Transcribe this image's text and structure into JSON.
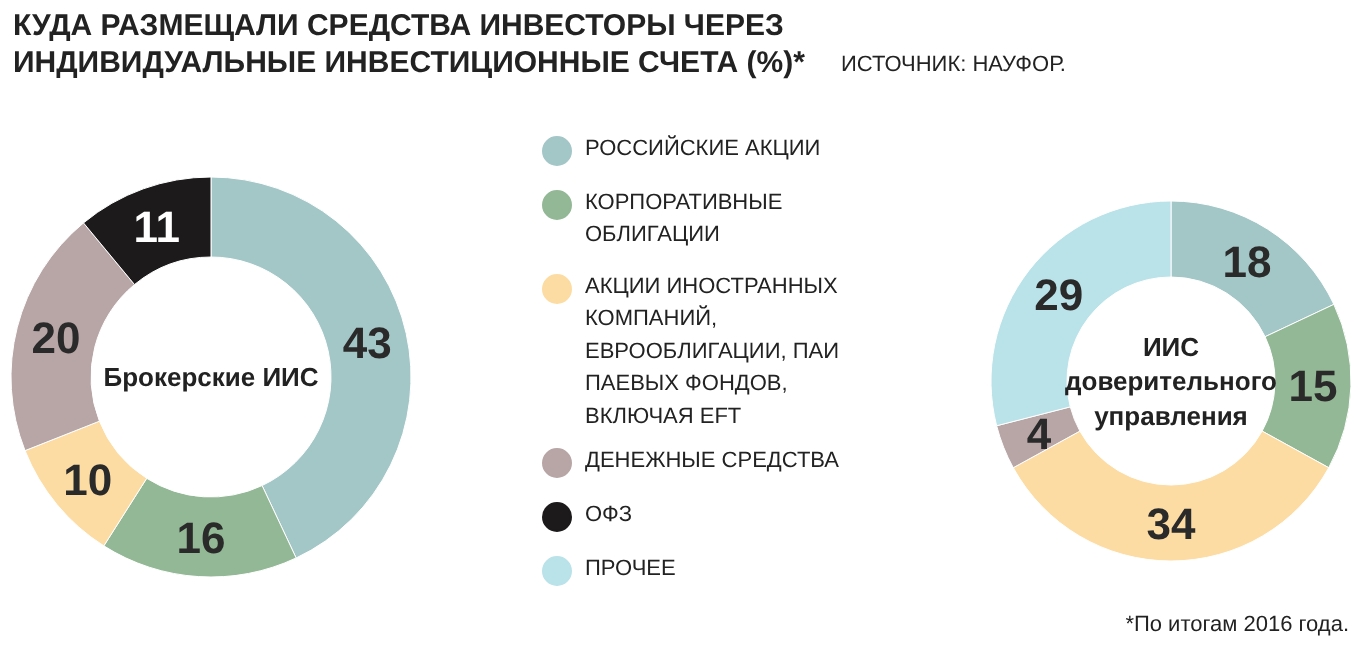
{
  "chart_data": [
    {
      "type": "donut",
      "title": "КУДА РАЗМЕЩАЛИ СРЕДСТВА ИНВЕСТОРЫ ЧЕРЕЗ ИНДИВИДУАЛЬНЫЕ ИНВЕСТИЦИОННЫЕ СЧЕТА (%)*",
      "subtitle": "Брокерские ИИС",
      "categories": [
        "РОССИЙСКИЕ АКЦИИ",
        "КОРПОРАТИВНЫЕ ОБЛИГАЦИИ",
        "АКЦИИ ИНОСТРАННЫХ КОМПАНИЙ, ЕВРООБЛИГАЦИИ, ПАИ ПАЕВЫХ ФОНДОВ, ВКЛЮЧАЯ EFT",
        "ДЕНЕЖНЫЕ СРЕДСТВА",
        "ОФЗ"
      ],
      "values": [
        43,
        16,
        10,
        20,
        11
      ],
      "colors": [
        "#a3c6c7",
        "#93b896",
        "#fcdca2",
        "#b8a5a5",
        "#1c1a1b"
      ],
      "data_labels": true,
      "legend": "right",
      "annotations": [
        "ИСТОЧНИК: НАУФОР."
      ]
    },
    {
      "type": "donut",
      "subtitle": "ИИС доверительного управления",
      "categories": [
        null,
        null,
        null,
        null,
        "ПРОЧЕЕ"
      ],
      "values": [
        18,
        15,
        34,
        4,
        29
      ],
      "colors": [
        "#a3c6c7",
        "#93b896",
        "#fcdca2",
        "#b8a5a5",
        "#b9e2e9"
      ],
      "data_labels": true,
      "legend": "left",
      "annotations": [
        "*По итогам 2016 года."
      ]
    }
  ]
}
